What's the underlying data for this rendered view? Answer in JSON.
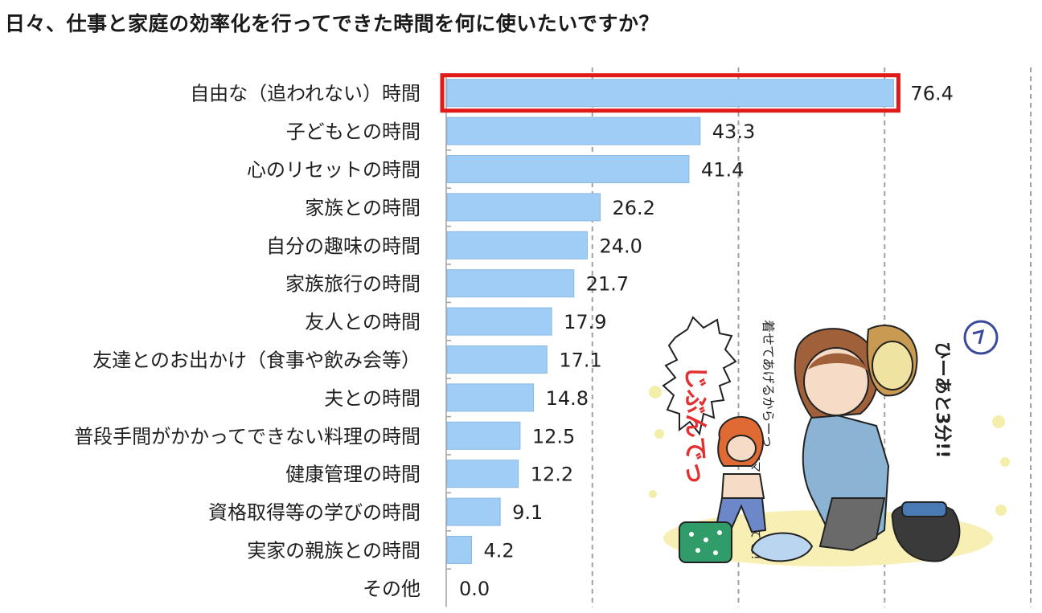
{
  "title": "日々、仕事と家庭の効率化を行ってできた時間を何に使いたいですか？",
  "chart_data": {
    "type": "bar",
    "orientation": "horizontal",
    "categories": [
      "自由な（追われない）時間",
      "子どもとの時間",
      "心のリセットの時間",
      "家族との時間",
      "自分の趣味の時間",
      "家族旅行の時間",
      "友人との時間",
      "友達とのお出かけ（食事や飲み会等）",
      "夫との時間",
      "普段手間がかかってできない料理の時間",
      "健康管理の時間",
      "資格取得等の学びの時間",
      "実家の親族との時間",
      "その他"
    ],
    "values": [
      76.4,
      43.3,
      41.4,
      26.2,
      24.0,
      21.7,
      17.9,
      17.1,
      14.8,
      12.5,
      12.2,
      9.1,
      4.2,
      0.0
    ],
    "value_labels": [
      "76.4",
      "43.3",
      "41.4",
      "26.2",
      "24.0",
      "21.7",
      "17.9",
      "17.1",
      "14.8",
      "12.5",
      "12.2",
      "9.1",
      "4.2",
      "0.0"
    ],
    "xlim": [
      0,
      100
    ],
    "gridlines": [
      25,
      50,
      75,
      100
    ],
    "highlight_index": 0,
    "bar_color": "#9fcdf5",
    "bar_edge_color": "#8ab9e6",
    "highlight_color": "#e01919",
    "grid_color": "#a0a0a0"
  },
  "illustration": {
    "speech_1": "着せてあげるからーっ",
    "speech_2": "じぶんでっ",
    "speech_3": "ママあっちいってて!!",
    "speech_4": "ひーあと3分!!"
  }
}
